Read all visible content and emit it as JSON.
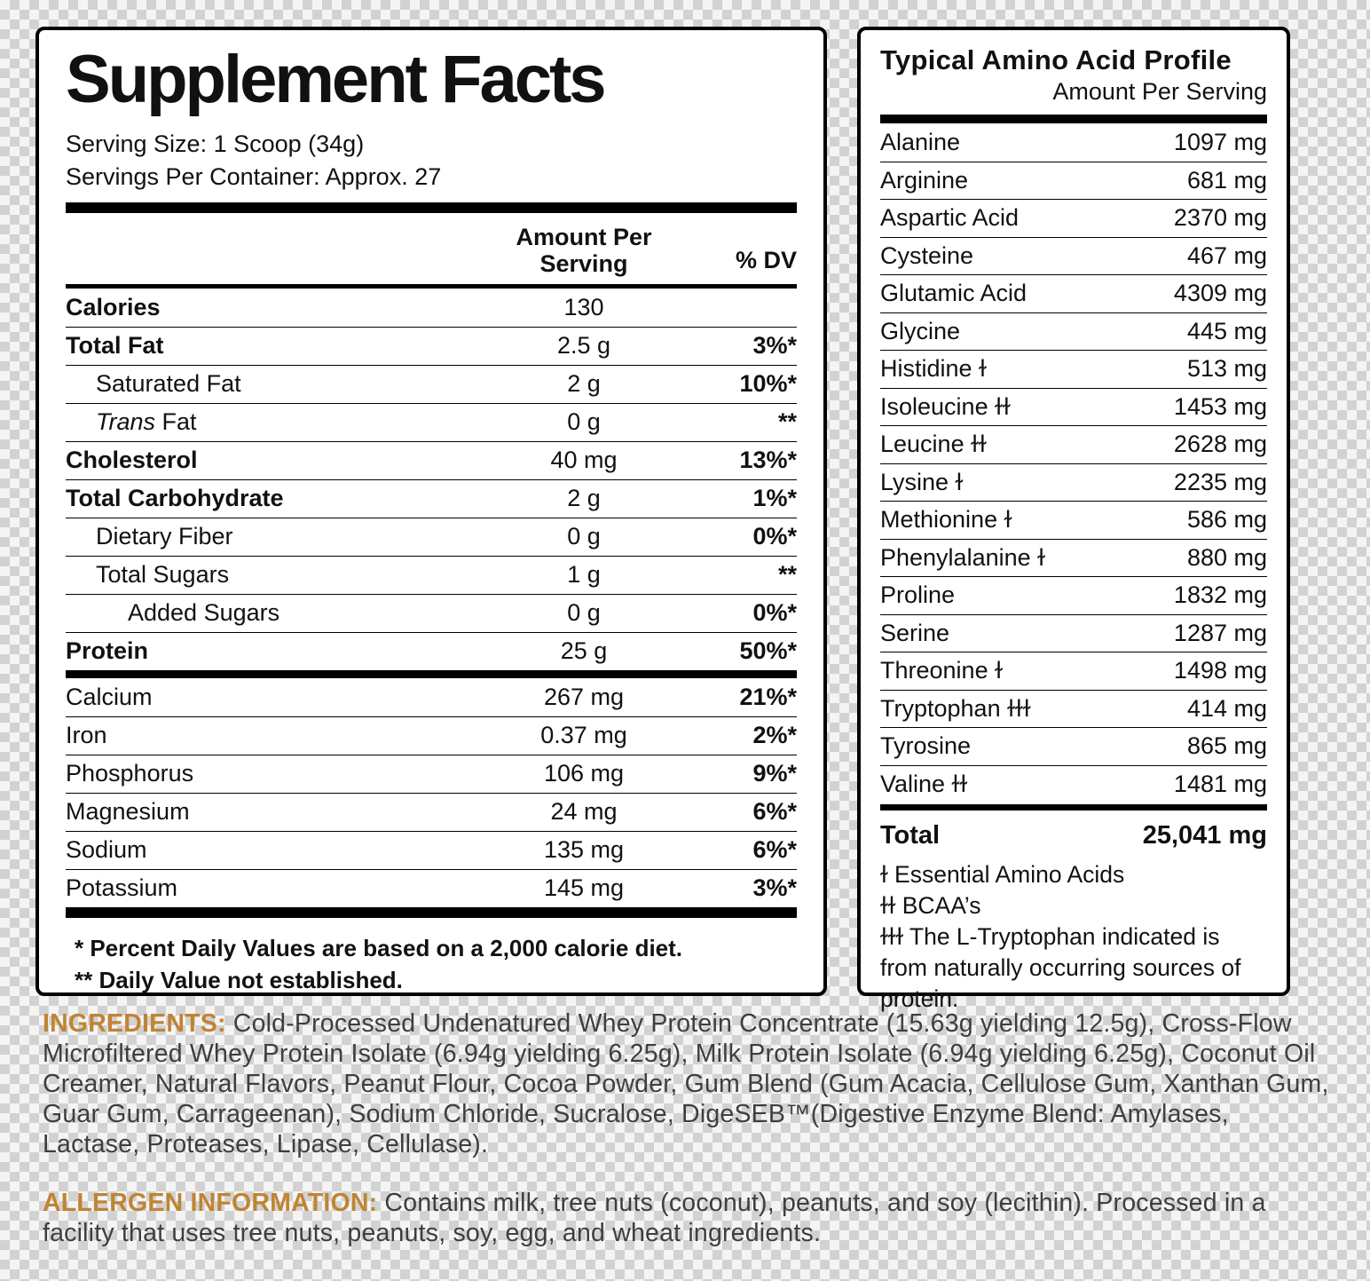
{
  "supplement_facts": {
    "title": "Supplement Facts",
    "serving_size": "Serving Size: 1 Scoop (34g)",
    "servings_per_container": "Servings Per Container: Approx. 27",
    "col_amount": "Amount Per Serving",
    "col_dv": "% DV",
    "rows": [
      {
        "label": "Calories",
        "bold": true,
        "indent": 0,
        "amount": "130",
        "dv": ""
      },
      {
        "label": "Total Fat",
        "bold": true,
        "indent": 0,
        "amount": "2.5 g",
        "dv": "3%*"
      },
      {
        "label": "Saturated Fat",
        "indent": 1,
        "amount": "2 g",
        "dv": "10%*"
      },
      {
        "label_italic": "Trans",
        "label": " Fat",
        "indent": 1,
        "amount": "0 g",
        "dv": "**"
      },
      {
        "label": "Cholesterol",
        "bold": true,
        "indent": 0,
        "amount": "40 mg",
        "dv": "13%*"
      },
      {
        "label": "Total Carbohydrate",
        "bold": true,
        "indent": 0,
        "amount": "2 g",
        "dv": "1%*"
      },
      {
        "label": "Dietary Fiber",
        "indent": 1,
        "amount": "0 g",
        "dv": "0%*"
      },
      {
        "label": "Total Sugars",
        "indent": 1,
        "amount": "1 g",
        "dv": "**"
      },
      {
        "label": "Added Sugars",
        "indent": 2,
        "amount": "0 g",
        "dv": "0%*"
      },
      {
        "label": "Protein",
        "bold": true,
        "indent": 0,
        "amount": "25 g",
        "dv": "50%*",
        "bar_after": "medium"
      },
      {
        "label": "Calcium",
        "indent": 0,
        "amount": "267 mg",
        "dv": "21%*"
      },
      {
        "label": "Iron",
        "indent": 0,
        "amount": "0.37 mg",
        "dv": "2%*"
      },
      {
        "label": "Phosphorus",
        "indent": 0,
        "amount": "106 mg",
        "dv": "9%*"
      },
      {
        "label": "Magnesium",
        "indent": 0,
        "amount": "24 mg",
        "dv": "6%*"
      },
      {
        "label": "Sodium",
        "indent": 0,
        "amount": "135 mg",
        "dv": "6%*"
      },
      {
        "label": "Potassium",
        "indent": 0,
        "amount": "145 mg",
        "dv": "3%*"
      }
    ],
    "footnotes": [
      "* Percent Daily Values are based on a 2,000 calorie diet.",
      "** Daily Value not established."
    ]
  },
  "amino_profile": {
    "title": "Typical Amino Acid Profile",
    "subtitle": "Amount Per Serving",
    "rows": [
      {
        "label": "Alanine",
        "amount": "1097 mg"
      },
      {
        "label": "Arginine",
        "amount": "681 mg"
      },
      {
        "label": "Aspartic Acid",
        "amount": "2370 mg"
      },
      {
        "label": "Cysteine",
        "amount": "467 mg"
      },
      {
        "label": "Glutamic Acid",
        "amount": "4309 mg"
      },
      {
        "label": "Glycine",
        "amount": "445 mg"
      },
      {
        "label": "Histidine ɫ",
        "amount": "513 mg"
      },
      {
        "label": "Isoleucine ɫɫ",
        "amount": "1453 mg"
      },
      {
        "label": "Leucine ɫɫ",
        "amount": "2628 mg"
      },
      {
        "label": "Lysine ɫ",
        "amount": "2235 mg"
      },
      {
        "label": "Methionine ɫ",
        "amount": "586 mg"
      },
      {
        "label": "Phenylalanine ɫ",
        "amount": "880 mg"
      },
      {
        "label": "Proline",
        "amount": "1832 mg"
      },
      {
        "label": "Serine",
        "amount": "1287 mg"
      },
      {
        "label": "Threonine ɫ",
        "amount": "1498 mg"
      },
      {
        "label": "Tryptophan ɫɫɫ",
        "amount": "414 mg"
      },
      {
        "label": "Tyrosine",
        "amount": "865 mg"
      },
      {
        "label": "Valine ɫɫ",
        "amount": "1481 mg"
      }
    ],
    "total_label": "Total",
    "total_amount": "25,041 mg",
    "legend": [
      "ɫ Essential Amino Acids",
      "ɫɫ BCAA’s",
      "ɫɫɫ The L-Tryptophan indicated is from naturally occurring sources of protein."
    ]
  },
  "ingredients": {
    "heading": "INGREDIENTS:",
    "text": " Cold-Processed Undenatured Whey Protein Concentrate (15.63g yielding 12.5g), Cross-Flow Microfiltered Whey Protein Isolate (6.94g yielding 6.25g), Milk Protein Isolate (6.94g yielding 6.25g), Coconut Oil Creamer, Natural Flavors, Peanut Flour, Cocoa Powder, Gum Blend (Gum Acacia, Cellulose Gum, Xanthan Gum, Guar Gum, Carrageenan), Sodium Chloride, Sucralose, DigeSEB™(Digestive Enzyme Blend: Amylases, Lactase, Proteases, Lipase, Cellulase)."
  },
  "allergen": {
    "heading": "ALLERGEN INFORMATION:",
    "text": " Contains milk, tree nuts (coconut), peanuts, and soy (lecithin). Processed in a facility that uses tree nuts, peanuts, soy, egg, and wheat ingredients."
  },
  "colors": {
    "accent": "#c08434",
    "panel_border": "#000000",
    "body_text": "#3e3e3e"
  }
}
